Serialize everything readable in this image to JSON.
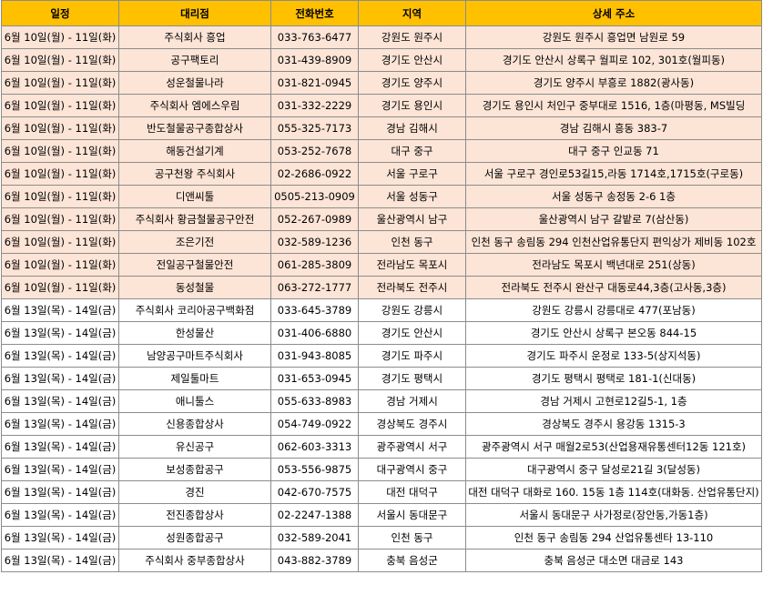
{
  "table": {
    "header": [
      "일정",
      "대리점",
      "전화번호",
      "지역",
      "상세 주소"
    ],
    "rows": [
      [
        "6월 10일(월) - 11일(화)",
        "주식회사 흥업",
        "033-763-6477",
        "강원도 원주시",
        "강원도 원주시 흥업면 남원로 59"
      ],
      [
        "6월 10일(월) - 11일(화)",
        "공구팩토리",
        "031-439-8909",
        "경기도 안산시",
        "경기도 안산시 상록구 월피로 102, 301호(월피동)"
      ],
      [
        "6월 10일(월) - 11일(화)",
        "성운철물나라",
        "031-821-0945",
        "경기도 양주시",
        "경기도 양주시 부흥로 1882(광사동)"
      ],
      [
        "6월 10일(월) - 11일(화)",
        "주식회사 엠에스우림",
        "031-332-2229",
        "경기도 용인시",
        "경기도 용인시 처인구 중부대로 1516, 1층(마평동, MS빌딩"
      ],
      [
        "6월 10일(월) - 11일(화)",
        "반도철물공구종합상사",
        "055-325-7173",
        "경남 김해시",
        "경남 김해시 흥동 383-7"
      ],
      [
        "6월 10일(월) - 11일(화)",
        "해동건설기계",
        "053-252-7678",
        "대구 중구",
        "대구 중구 인교동 71"
      ],
      [
        "6월 10일(월) - 11일(화)",
        "공구천왕 주식회사",
        "02-2686-0922",
        "서울 구로구",
        "서울 구로구 경인로53길15,라동 1714호,1715호(구로동)"
      ],
      [
        "6월 10일(월) - 11일(화)",
        "디앤씨툴",
        "0505-213-0909",
        "서울 성동구",
        "서울 성동구 송정동 2-6 1층"
      ],
      [
        "6월 10일(월) - 11일(화)",
        "주식회사 황금철물공구안전",
        "052-267-0989",
        "울산광역시 남구",
        "울산광역시 남구 갈밭로 7(삼산동)"
      ],
      [
        "6월 10일(월) - 11일(화)",
        "조은기전",
        "032-589-1236",
        "인천 동구",
        "인천 동구 송림동 294 인천산업유통단지 편익상가 제비동 102호"
      ],
      [
        "6월 10일(월) - 11일(화)",
        "전일공구철물안전",
        "061-285-3809",
        "전라남도 목포시",
        "전라남도 목포시 백년대로 251(상동)"
      ],
      [
        "6월 10일(월) - 11일(화)",
        "동성철물",
        "063-272-1777",
        "전라북도 전주시",
        "전라북도 전주시 완산구 대동로44,3층(고사동,3층)"
      ],
      [
        "6월 13일(목) - 14일(금)",
        "주식회사 코리아공구백화점",
        "033-645-3789",
        "강원도 강릉시",
        "강원도 강릉시 강릉대로 477(포남동)"
      ],
      [
        "6월 13일(목) - 14일(금)",
        "한성물산",
        "031-406-6880",
        "경기도 안산시",
        "경기도 안산시 상록구 본오동 844-15"
      ],
      [
        "6월 13일(목) - 14일(금)",
        "남양공구마트주식회사",
        "031-943-8085",
        "경기도 파주시",
        "경기도 파주시 운정로 133-5(상지석동)"
      ],
      [
        "6월 13일(목) - 14일(금)",
        "제일툴마트",
        "031-653-0945",
        "경기도 평택시",
        "경기도 평택시 평택로 181-1(신대동)"
      ],
      [
        "6월 13일(목) - 14일(금)",
        "애니툴스",
        "055-633-8983",
        "경남 거제시",
        "경남 거제시 고현로12길5-1, 1층"
      ],
      [
        "6월 13일(목) - 14일(금)",
        "신용종합상사",
        "054-749-0922",
        "경상북도 경주시",
        "경상북도 경주시 용강동 1315-3"
      ],
      [
        "6월 13일(목) - 14일(금)",
        "유신공구",
        "062-603-3313",
        "광주광역시 서구",
        "광주광역시 서구 매월2로53(산업용재유통센터12동 121호)"
      ],
      [
        "6월 13일(목) - 14일(금)",
        "보성종합공구",
        "053-556-9875",
        "대구광역시 중구",
        "대구광역시 중구 달성로21길 3(달성동)"
      ],
      [
        "6월 13일(목) - 14일(금)",
        "경진",
        "042-670-7575",
        "대전 대덕구",
        "대전 대덕구 대화로 160. 15동 1층 114호(대화동. 산업유통단지)"
      ],
      [
        "6월 13일(목) - 14일(금)",
        "전진종합상사",
        "02-2247-1388",
        "서울시 동대문구",
        "서울시 동대문구 사가정로(장안동,가동1층)"
      ],
      [
        "6월 13일(목) - 14일(금)",
        "성원종합공구",
        "032-589-2041",
        "인천 동구",
        "인천 동구 송림동 294 산업유통센타 13-110"
      ],
      [
        "6월 13일(목) - 14일(금)",
        "주식회사 중부종합상사",
        "043-882-3789",
        "충북 음성군",
        "충북 음성군 대소면 대금로 143"
      ]
    ]
  }
}
